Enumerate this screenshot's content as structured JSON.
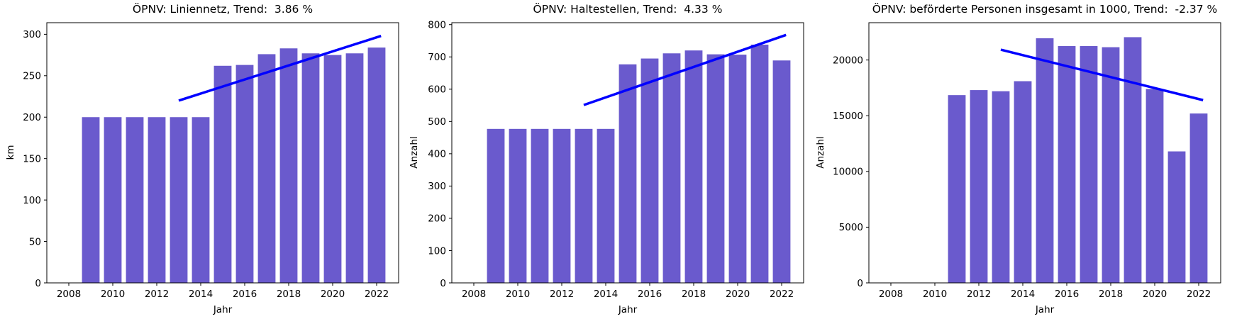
{
  "figure": {
    "background": "#ffffff",
    "bar_color": "#6a5acd",
    "trend_color": "#0000ff",
    "spine_color": "#000000"
  },
  "chart_data": [
    {
      "type": "bar",
      "title": "ÖPNV: Liniennetz, Trend:  3.86 %",
      "xlabel": "Jahr",
      "ylabel": "km",
      "x": [
        2009,
        2010,
        2011,
        2012,
        2013,
        2014,
        2015,
        2016,
        2017,
        2018,
        2019,
        2020,
        2021,
        2022
      ],
      "values": [
        200,
        200,
        200,
        200,
        200,
        200,
        262,
        263,
        276,
        283,
        277,
        275,
        277,
        284
      ],
      "trend": {
        "pct": "3.86 %",
        "x": [
          2013,
          2022.2
        ],
        "y": [
          220,
          298
        ]
      },
      "xlim": [
        2007,
        2023
      ],
      "ylim": [
        0,
        314
      ],
      "xticks": [
        2008,
        2010,
        2012,
        2014,
        2016,
        2018,
        2020,
        2022
      ],
      "yticks": [
        0,
        50,
        100,
        150,
        200,
        250,
        300
      ],
      "grid": false,
      "legend": false
    },
    {
      "type": "bar",
      "title": "ÖPNV: Haltestellen, Trend:  4.33 %",
      "xlabel": "Jahr",
      "ylabel": "Anzahl",
      "x": [
        2009,
        2010,
        2011,
        2012,
        2013,
        2014,
        2015,
        2016,
        2017,
        2018,
        2019,
        2020,
        2021,
        2022
      ],
      "values": [
        477,
        477,
        477,
        477,
        477,
        477,
        677,
        695,
        711,
        720,
        708,
        707,
        738,
        689
      ],
      "trend": {
        "pct": "4.33 %",
        "x": [
          2013,
          2022.2
        ],
        "y": [
          551,
          768
        ]
      },
      "xlim": [
        2007,
        2023
      ],
      "ylim": [
        0,
        806
      ],
      "xticks": [
        2008,
        2010,
        2012,
        2014,
        2016,
        2018,
        2020,
        2022
      ],
      "yticks": [
        0,
        100,
        200,
        300,
        400,
        500,
        600,
        700,
        800
      ],
      "grid": false,
      "legend": false
    },
    {
      "type": "bar",
      "title": "ÖPNV: beförderte Personen insgesamt in 1000, Trend:  -2.37 %",
      "xlabel": "Jahr",
      "ylabel": "Anzahl",
      "x": [
        2011,
        2012,
        2013,
        2014,
        2015,
        2016,
        2017,
        2018,
        2019,
        2020,
        2021,
        2022
      ],
      "values": [
        16850,
        17300,
        17200,
        18100,
        21950,
        21250,
        21250,
        21150,
        22050,
        17400,
        11800,
        15200
      ],
      "trend": {
        "pct": "-2.37 %",
        "x": [
          2013,
          2022.2
        ],
        "y": [
          20930,
          16400
        ]
      },
      "xlim": [
        2007,
        2023
      ],
      "ylim": [
        0,
        23350
      ],
      "xticks": [
        2008,
        2010,
        2012,
        2014,
        2016,
        2018,
        2020,
        2022
      ],
      "yticks": [
        0,
        5000,
        10000,
        15000,
        20000
      ],
      "grid": false,
      "legend": false
    }
  ]
}
